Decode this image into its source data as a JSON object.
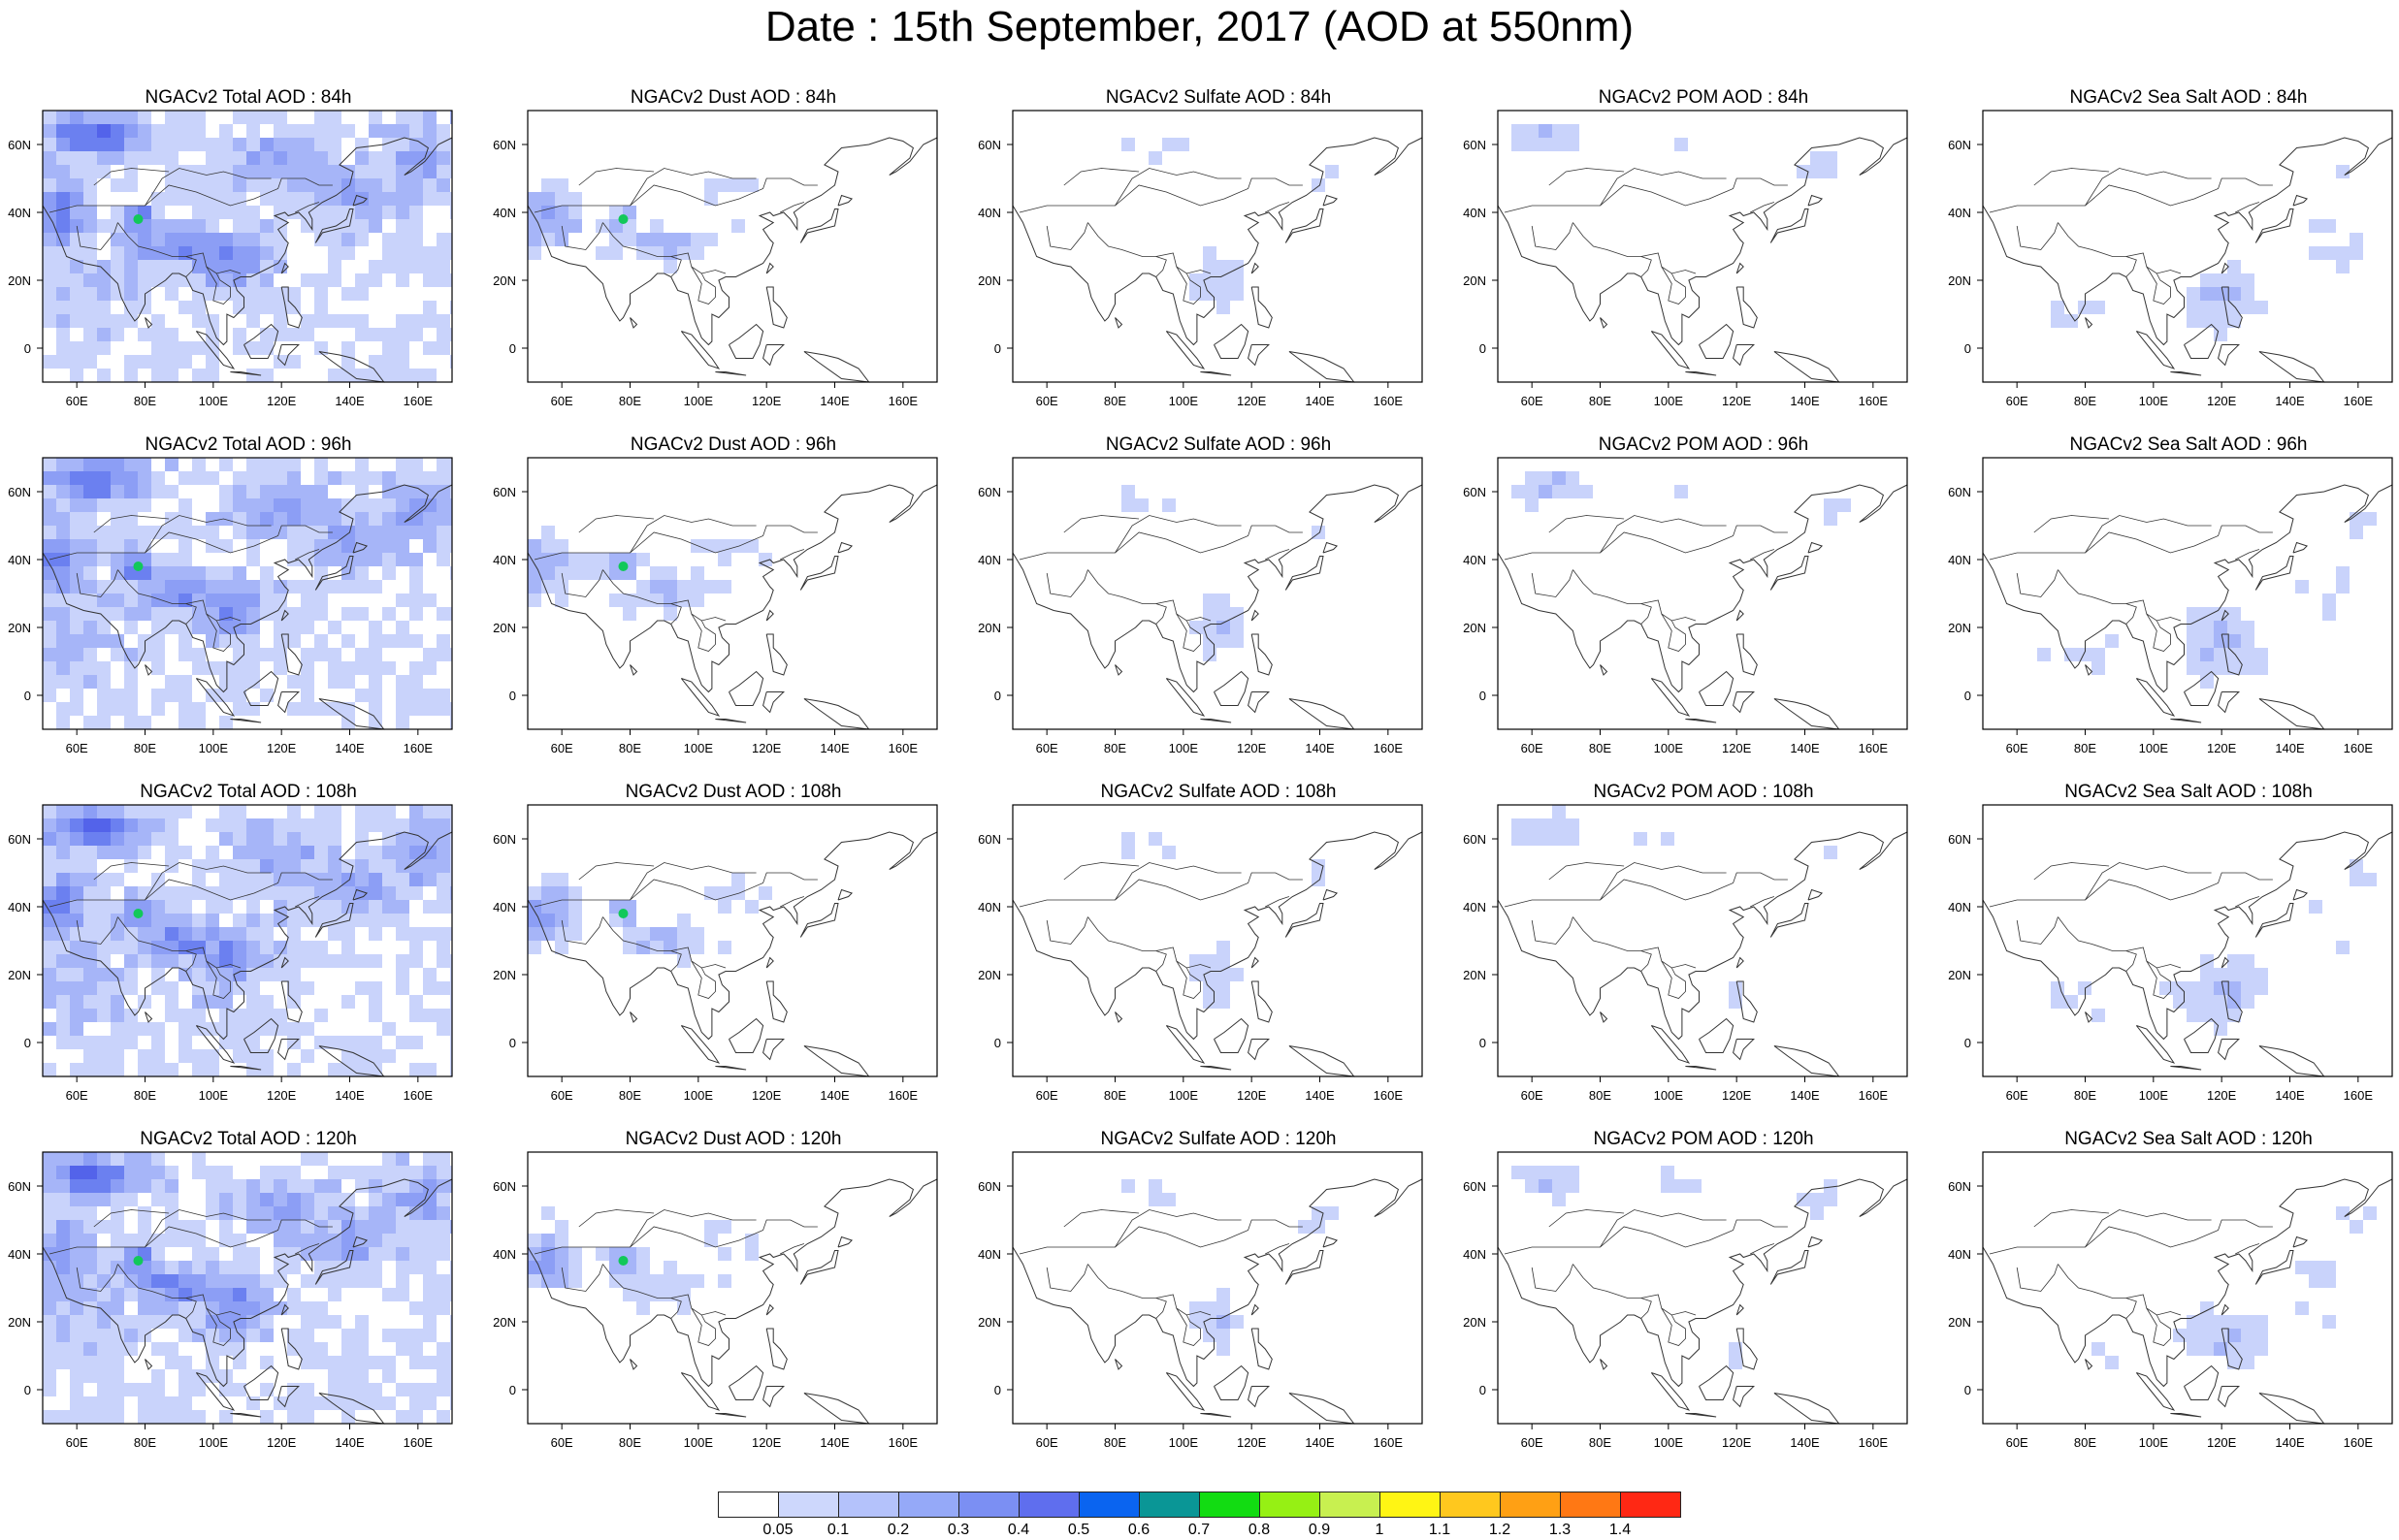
{
  "title": "Date : 15th September, 2017 (AOD at 550nm)",
  "x_ticks": [
    "60E",
    "80E",
    "100E",
    "120E",
    "140E",
    "160E"
  ],
  "y_ticks": [
    "60N",
    "40N",
    "20N",
    "0"
  ],
  "species": [
    {
      "id": "total",
      "palette": [
        "#c9d3fb",
        "#a6b5f8",
        "#8c9ef5",
        "#6b80f0",
        "#5363ea"
      ],
      "strength": 1.0
    },
    {
      "id": "dust",
      "palette": [
        "#c9d3fb",
        "#a6b5f8",
        "#8c9ef5",
        "#6b80f0",
        "#5363ea"
      ],
      "strength": 0.75
    },
    {
      "id": "sulfate",
      "palette": [
        "#c9d3fb",
        "#a6b5f8",
        "#8c9ef5"
      ],
      "strength": 0.35
    },
    {
      "id": "pom",
      "palette": [
        "#c9d3fb",
        "#a6b5f8",
        "#8c9ef5"
      ],
      "strength": 0.45
    },
    {
      "id": "seasalt",
      "palette": [
        "#c9d3fb",
        "#a6b5f8",
        "#8c9ef5"
      ],
      "strength": 0.55
    }
  ],
  "panels": [
    {
      "title": "NGACv2 Total AOD : 84h",
      "species": "total"
    },
    {
      "title": "NGACv2 Dust AOD : 84h",
      "species": "dust"
    },
    {
      "title": "NGACv2 Sulfate AOD : 84h",
      "species": "sulfate"
    },
    {
      "title": "NGACv2 POM AOD : 84h",
      "species": "pom"
    },
    {
      "title": "NGACv2 Sea Salt AOD : 84h",
      "species": "seasalt"
    },
    {
      "title": "NGACv2 Total AOD : 96h",
      "species": "total"
    },
    {
      "title": "NGACv2 Dust AOD : 96h",
      "species": "dust"
    },
    {
      "title": "NGACv2 Sulfate AOD : 96h",
      "species": "sulfate"
    },
    {
      "title": "NGACv2 POM AOD : 96h",
      "species": "pom"
    },
    {
      "title": "NGACv2 Sea Salt AOD : 96h",
      "species": "seasalt"
    },
    {
      "title": "NGACv2 Total AOD : 108h",
      "species": "total"
    },
    {
      "title": "NGACv2 Dust AOD : 108h",
      "species": "dust"
    },
    {
      "title": "NGACv2 Sulfate AOD : 108h",
      "species": "sulfate"
    },
    {
      "title": "NGACv2 POM AOD : 108h",
      "species": "pom"
    },
    {
      "title": "NGACv2 Sea Salt AOD : 108h",
      "species": "seasalt"
    },
    {
      "title": "NGACv2 Total AOD : 120h",
      "species": "total"
    },
    {
      "title": "NGACv2 Dust AOD : 120h",
      "species": "dust"
    },
    {
      "title": "NGACv2 Sulfate AOD : 120h",
      "species": "sulfate"
    },
    {
      "title": "NGACv2 POM AOD : 120h",
      "species": "pom"
    },
    {
      "title": "NGACv2 Sea Salt  AOD : 120h",
      "species": "seasalt"
    }
  ],
  "colorbar": {
    "colors": [
      "#ffffff",
      "#cdd7fc",
      "#b4c2fb",
      "#95a9f8",
      "#7b8ff3",
      "#5f6eee",
      "#0a64f0",
      "#0a9696",
      "#12dc12",
      "#96f014",
      "#c8f050",
      "#fff514",
      "#ffc81e",
      "#ffa014",
      "#ff7814",
      "#ff2814"
    ],
    "labels": [
      "0.05",
      "0.1",
      "0.2",
      "0.3",
      "0.4",
      "0.5",
      "0.6",
      "0.7",
      "0.8",
      "0.9",
      "1",
      "1.1",
      "1.2",
      "1.3",
      "1.4"
    ]
  }
}
